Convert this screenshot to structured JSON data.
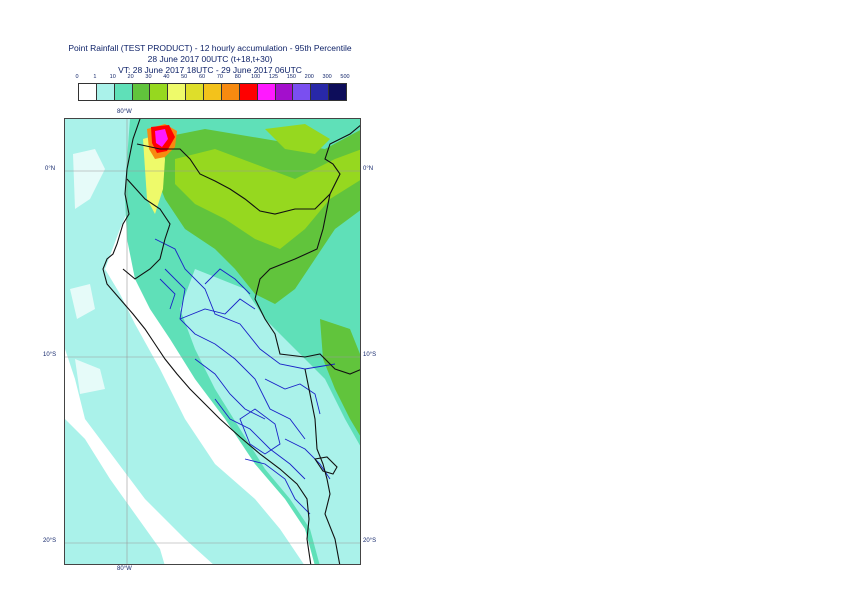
{
  "title": {
    "line1": "Point Rainfall (TEST PRODUCT) - 12 hourly accumulation - 95th Percentile",
    "line2": "28 June 2017 00UTC (t+18,t+30)",
    "line3": "VT: 28 June 2017 18UTC - 29 June 2017 06UTC"
  },
  "legend": {
    "labels": [
      "0",
      "1",
      "10",
      "20",
      "30",
      "40",
      "50",
      "60",
      "70",
      "80",
      "100",
      "125",
      "150",
      "200",
      "300",
      "500"
    ],
    "colors": [
      "#ffffff",
      "#aaf2ea",
      "#5fe0b8",
      "#61c43c",
      "#96d81f",
      "#eefa6a",
      "#dede2a",
      "#f3c21b",
      "#f78a10",
      "#ff0000",
      "#ff19ff",
      "#a30fcc",
      "#7a4ff0",
      "#2828a8",
      "#0d0d5a"
    ]
  },
  "map": {
    "grid_labels": {
      "top_lon": "80°W",
      "bottom_lon": "80°W",
      "lat_0_left": "0°N",
      "lat_0_right": "0°N",
      "lat_10_left": "10°S",
      "lat_10_right": "10°S",
      "lat_20_left": "20°S",
      "lat_20_right": "20°S"
    },
    "colors": {
      "ocean_light": "#aaf2ea",
      "land_mid": "#5fe0b8",
      "land_green": "#61c43c",
      "land_lime": "#96d81f",
      "peak_yellow": "#eefa6a",
      "peak_orange": "#f78a10",
      "peak_red": "#ff0000",
      "peak_magenta": "#ff19ff",
      "border_country": "#111111",
      "border_region": "#1a23c8",
      "grid": "#999999"
    }
  }
}
